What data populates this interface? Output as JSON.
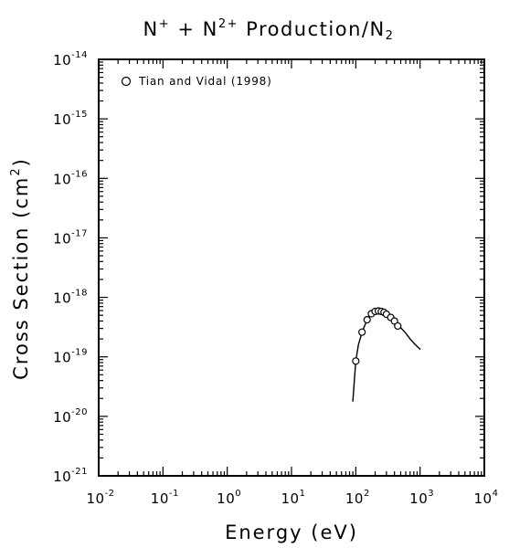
{
  "chart_data": {
    "type": "scatter",
    "title": {
      "parts": [
        {
          "text": "N"
        },
        {
          "text": "+",
          "sup": true
        },
        {
          "text": " + N"
        },
        {
          "text": "2+",
          "sup": true
        },
        {
          "text": " Production/N"
        },
        {
          "text": "2",
          "sub": true
        }
      ]
    },
    "xlabel": "Energy (eV)",
    "ylabel": {
      "parts": [
        {
          "text": "Cross Section (cm"
        },
        {
          "text": "2",
          "sup": true
        },
        {
          "text": ")"
        }
      ]
    },
    "x_scale": "log",
    "y_scale": "log",
    "xlim": [
      0.01,
      10000
    ],
    "ylim": [
      1e-21,
      1e-14
    ],
    "x_tick_exponents": [
      -2,
      -1,
      0,
      1,
      2,
      3,
      4
    ],
    "y_tick_exponents": [
      -21,
      -20,
      -19,
      -18,
      -17,
      -16,
      -15,
      -14
    ],
    "tick_base": "10",
    "legend": {
      "position": "top-left",
      "entry": "Tian and Vidal (1998)"
    },
    "series": [
      {
        "name": "Tian and Vidal (1998)",
        "type": "scatter",
        "x": [
          100,
          125,
          150,
          175,
          200,
          225,
          250,
          275,
          300,
          350,
          400,
          450
        ],
        "y": [
          8.5e-20,
          2.6e-19,
          4.2e-19,
          5.3e-19,
          5.8e-19,
          5.9e-19,
          5.8e-19,
          5.6e-19,
          5.2e-19,
          4.6e-19,
          4e-19,
          3.3e-19
        ]
      },
      {
        "type": "line",
        "x": [
          90,
          95,
          100,
          110,
          125,
          150,
          175,
          200,
          250,
          300,
          350,
          400,
          500,
          600,
          700,
          800,
          900,
          1000
        ],
        "y": [
          1.8e-20,
          4e-20,
          8.5e-20,
          1.6e-19,
          2.6e-19,
          4.2e-19,
          5.3e-19,
          5.8e-19,
          5.8e-19,
          5.2e-19,
          4.6e-19,
          4e-19,
          3.1e-19,
          2.5e-19,
          2e-19,
          1.7e-19,
          1.5e-19,
          1.35e-19
        ]
      }
    ]
  }
}
